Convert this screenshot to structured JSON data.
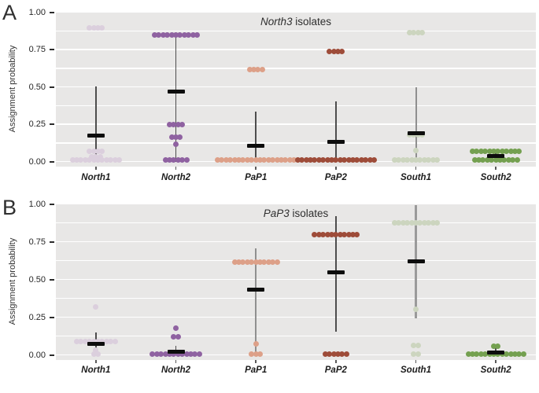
{
  "colors": {
    "plot_background": "#e8e7e6",
    "gridline": "#ffffff",
    "mean_bar": "#0d0d0d",
    "error_bar_default": "#4d4d4d"
  },
  "chart_data": [
    {
      "type": "scatter",
      "panel_letter": "A",
      "title": "North3 isolates",
      "title_italic_part": "North3",
      "title_rest_part": " isolates",
      "ylabel": "Assignment probability",
      "ylim": [
        0,
        1
      ],
      "gridline_step": 0.125,
      "ytick_labels": [
        "1.00",
        "0.75",
        "0.50",
        "0.25",
        "0.00"
      ],
      "ytick_values": [
        1.0,
        0.75,
        0.5,
        0.25,
        0.0
      ],
      "categories": [
        "North1",
        "North2",
        "PaP1",
        "PaP2",
        "South1",
        "South2"
      ],
      "groups": [
        {
          "label": "North1",
          "color": "#dbcfdd",
          "mean": 0.175,
          "err_low": 0.0,
          "err_high": 0.505,
          "points": [
            {
              "value": 0.895,
              "count": 4
            },
            {
              "value": 0.07,
              "count": 4
            },
            {
              "value": 0.03,
              "count": 3
            },
            {
              "value": 0.012,
              "count": 12
            }
          ]
        },
        {
          "label": "North2",
          "color": "#8f62a1",
          "mean": 0.47,
          "err_low": 0.0,
          "err_high": 0.835,
          "points": [
            {
              "value": 0.845,
              "count": 11
            },
            {
              "value": 0.25,
              "count": 4
            },
            {
              "value": 0.165,
              "count": 3
            },
            {
              "value": 0.115,
              "count": 1
            },
            {
              "value": 0.008,
              "count": 6
            }
          ]
        },
        {
          "label": "PaP1",
          "color": "#dda088",
          "mean": 0.105,
          "err_low": 0.0,
          "err_high": 0.335,
          "points": [
            {
              "value": 0.615,
              "count": 4
            },
            {
              "value": 0.008,
              "count": 19
            }
          ]
        },
        {
          "label": "PaP2",
          "color": "#9e4c39",
          "mean": 0.13,
          "err_low": 0.0,
          "err_high": 0.405,
          "points": [
            {
              "value": 0.735,
              "count": 4
            },
            {
              "value": 0.008,
              "count": 19
            }
          ]
        },
        {
          "label": "South1",
          "color": "#ccd5bf",
          "mean": 0.19,
          "err_low": 0.0,
          "err_high": 0.5,
          "err_color": "#8f8f8f",
          "err_width": 2,
          "points": [
            {
              "value": 0.865,
              "count": 4
            },
            {
              "value": 0.18,
              "count": 4
            },
            {
              "value": 0.075,
              "count": 1
            },
            {
              "value": 0.012,
              "count": 11
            }
          ]
        },
        {
          "label": "South2",
          "color": "#74a050",
          "mean": 0.035,
          "err_low": 0.0,
          "err_high": 0.07,
          "points": [
            {
              "value": 0.07,
              "count": 12
            },
            {
              "value": 0.008,
              "count": 11
            }
          ]
        }
      ]
    },
    {
      "type": "scatter",
      "panel_letter": "B",
      "title": "PaP3 isolates",
      "title_italic_part": "PaP3",
      "title_rest_part": " isolates",
      "ylabel": "Assignment probability",
      "ylim": [
        0,
        1
      ],
      "gridline_step": 0.125,
      "ytick_labels": [
        "1.00",
        "0.75",
        "0.50",
        "0.25",
        "0.00"
      ],
      "ytick_values": [
        1.0,
        0.75,
        0.5,
        0.25,
        0.0
      ],
      "categories": [
        "North1",
        "North2",
        "PaP1",
        "PaP2",
        "South1",
        "South2"
      ],
      "groups": [
        {
          "label": "North1",
          "color": "#dbcfdd",
          "mean": 0.075,
          "err_low": 0.0,
          "err_high": 0.15,
          "points": [
            {
              "value": 0.32,
              "count": 1
            },
            {
              "value": 0.09,
              "count": 10
            },
            {
              "value": 0.03,
              "count": 1
            },
            {
              "value": 0.005,
              "count": 2
            }
          ]
        },
        {
          "label": "North2",
          "color": "#8f62a1",
          "mean": 0.022,
          "err_low": 0.0,
          "err_high": 0.06,
          "points": [
            {
              "value": 0.175,
              "count": 1
            },
            {
              "value": 0.12,
              "count": 2
            },
            {
              "value": 0.004,
              "count": 12
            }
          ]
        },
        {
          "label": "PaP1",
          "color": "#dda088",
          "mean": 0.43,
          "err_low": 0.0,
          "err_high": 0.705,
          "err_color": "#909090",
          "err_width": 2.5,
          "points": [
            {
              "value": 0.615,
              "count": 11
            },
            {
              "value": 0.075,
              "count": 1
            },
            {
              "value": 0.005,
              "count": 3
            }
          ]
        },
        {
          "label": "PaP2",
          "color": "#9e4c39",
          "mean": 0.545,
          "err_low": 0.155,
          "err_high": 0.92,
          "points": [
            {
              "value": 0.795,
              "count": 11
            },
            {
              "value": 0.005,
              "count": 6
            }
          ]
        },
        {
          "label": "South1",
          "color": "#ccd5bf",
          "mean": 0.62,
          "err_low": 0.24,
          "err_high": 0.99,
          "err_color": "#9a9a9a",
          "err_width": 3.5,
          "points": [
            {
              "value": 0.875,
              "count": 11
            },
            {
              "value": 0.3,
              "count": 1
            },
            {
              "value": 0.065,
              "count": 2
            },
            {
              "value": 0.005,
              "count": 2
            }
          ]
        },
        {
          "label": "South2",
          "color": "#74a050",
          "mean": 0.018,
          "err_low": 0.0,
          "err_high": 0.045,
          "points": [
            {
              "value": 0.058,
              "count": 2
            },
            {
              "value": 0.004,
              "count": 14
            }
          ]
        }
      ]
    }
  ]
}
